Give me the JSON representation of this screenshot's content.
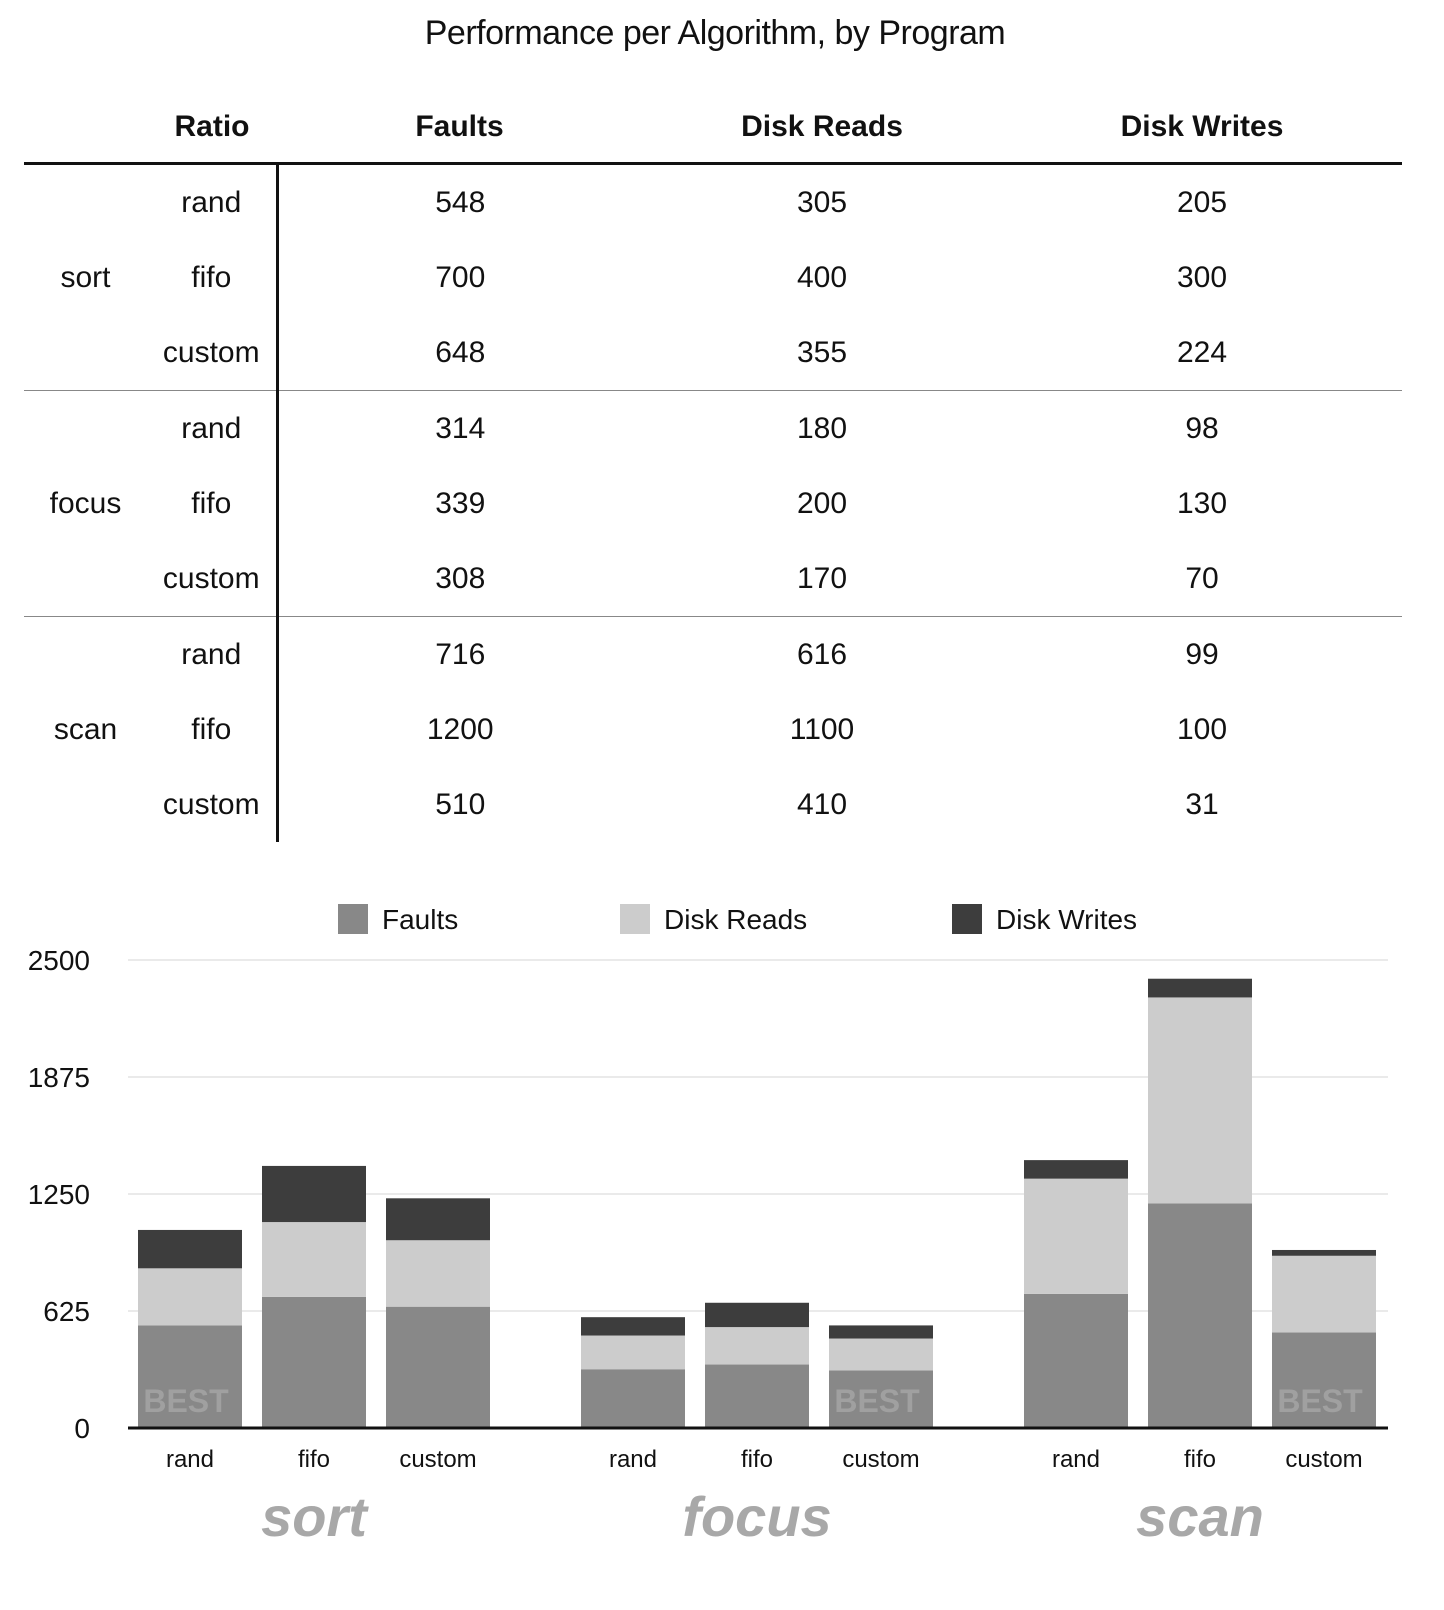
{
  "title": "Performance per Algorithm, by Program",
  "table": {
    "headers": [
      "Ratio",
      "Faults",
      "Disk Reads",
      "Disk Writes"
    ],
    "groups": [
      {
        "program": "sort",
        "rows": [
          {
            "algo": "rand",
            "faults": "548",
            "reads": "305",
            "writes": "205"
          },
          {
            "algo": "fifo",
            "faults": "700",
            "reads": "400",
            "writes": "300"
          },
          {
            "algo": "custom",
            "faults": "648",
            "reads": "355",
            "writes": "224"
          }
        ]
      },
      {
        "program": "focus",
        "rows": [
          {
            "algo": "rand",
            "faults": "314",
            "reads": "180",
            "writes": "98"
          },
          {
            "algo": "fifo",
            "faults": "339",
            "reads": "200",
            "writes": "130"
          },
          {
            "algo": "custom",
            "faults": "308",
            "reads": "170",
            "writes": "70"
          }
        ]
      },
      {
        "program": "scan",
        "rows": [
          {
            "algo": "rand",
            "faults": "716",
            "reads": "616",
            "writes": "99"
          },
          {
            "algo": "fifo",
            "faults": "1200",
            "reads": "1100",
            "writes": "100"
          },
          {
            "algo": "custom",
            "faults": "510",
            "reads": "410",
            "writes": "31"
          }
        ]
      }
    ]
  },
  "chart_data": {
    "type": "bar",
    "stacked": true,
    "groups": [
      "sort",
      "focus",
      "scan"
    ],
    "categories": [
      "rand",
      "fifo",
      "custom"
    ],
    "series": [
      {
        "name": "Faults",
        "color": "#888888",
        "values": [
          [
            548,
            700,
            648
          ],
          [
            314,
            339,
            308
          ],
          [
            716,
            1200,
            510
          ]
        ]
      },
      {
        "name": "Disk Reads",
        "color": "#cccccc",
        "values": [
          [
            305,
            400,
            355
          ],
          [
            180,
            200,
            170
          ],
          [
            616,
            1100,
            410
          ]
        ]
      },
      {
        "name": "Disk Writes",
        "color": "#3d3d3d",
        "values": [
          [
            205,
            300,
            224
          ],
          [
            98,
            130,
            70
          ],
          [
            99,
            100,
            31
          ]
        ]
      }
    ],
    "yticks": [
      0,
      625,
      1250,
      1875,
      2500
    ],
    "ylim": [
      0,
      2500
    ],
    "grid": true,
    "legend_position": "top",
    "annotations": [
      {
        "text": "BEST",
        "group": "sort",
        "category": "rand"
      },
      {
        "text": "BEST",
        "group": "focus",
        "category": "custom"
      },
      {
        "text": "BEST",
        "group": "scan",
        "category": "custom"
      }
    ]
  }
}
